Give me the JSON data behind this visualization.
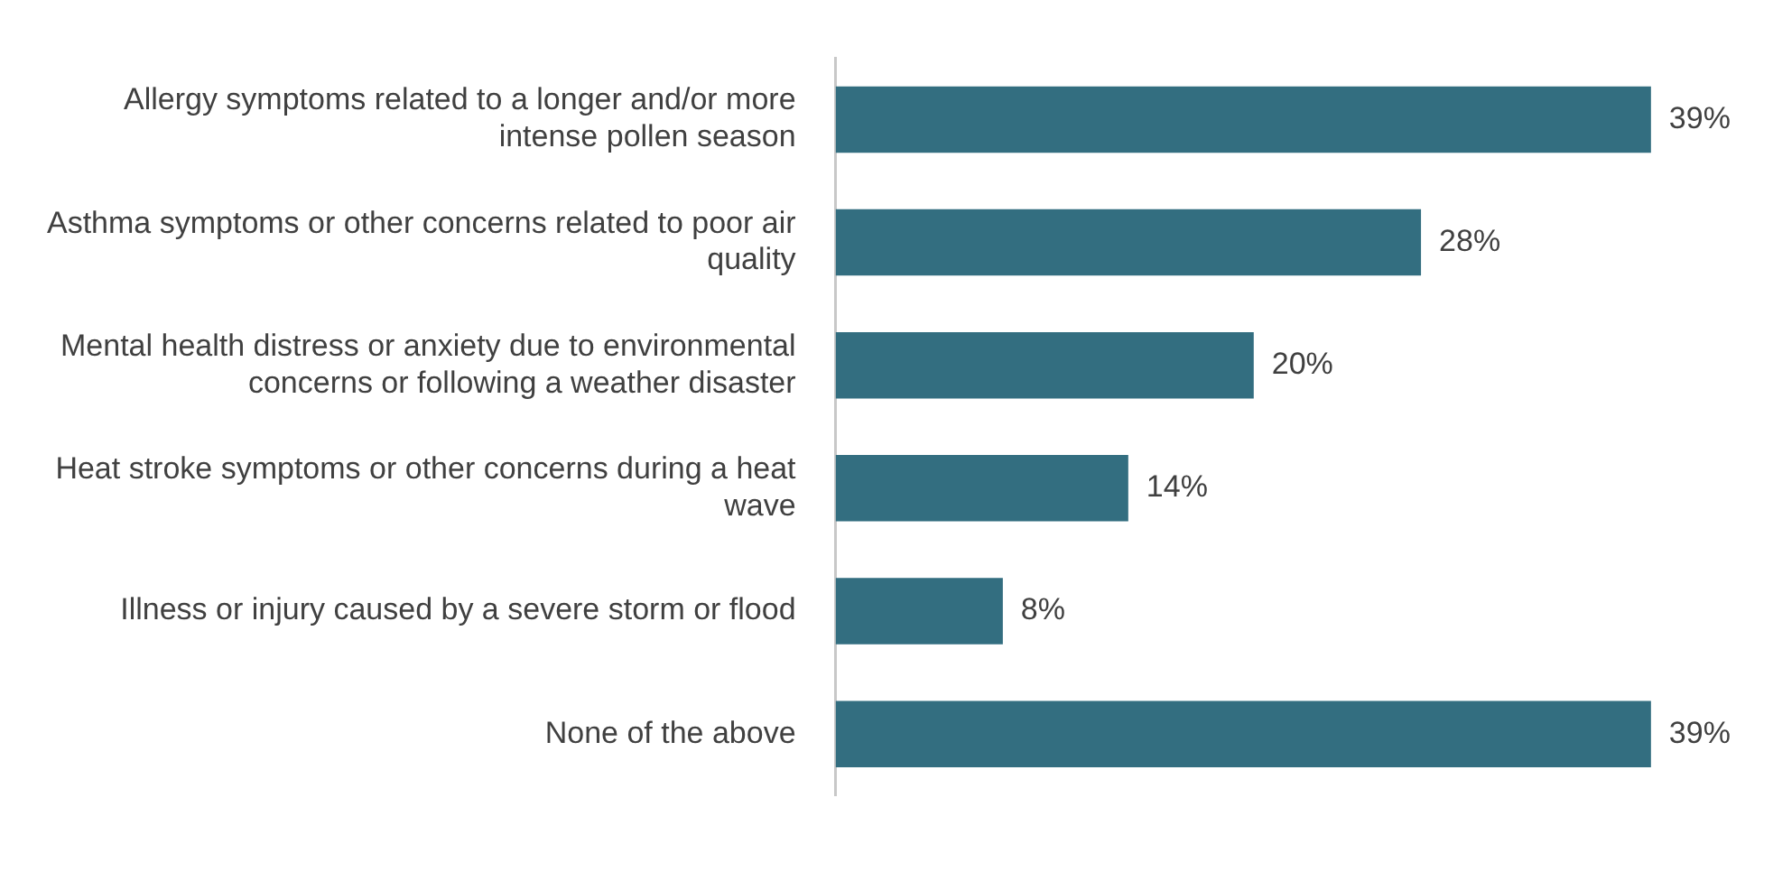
{
  "chart_data": {
    "type": "bar",
    "orientation": "horizontal",
    "categories": [
      "Allergy symptoms related to a longer and/or more intense pollen season",
      "Asthma symptoms or other concerns related to poor air quality",
      "Mental health distress or anxiety due to environmental concerns or following a weather disaster",
      "Heat stroke symptoms or other concerns during a heat wave",
      "Illness or injury caused by a severe storm or flood",
      "None of the above"
    ],
    "values": [
      39,
      28,
      20,
      14,
      8,
      39
    ],
    "value_labels": [
      "39%",
      "28%",
      "20%",
      "14%",
      "8%",
      "39%"
    ],
    "color": "#336e80",
    "legend": false,
    "tick_labels": "y"
  }
}
